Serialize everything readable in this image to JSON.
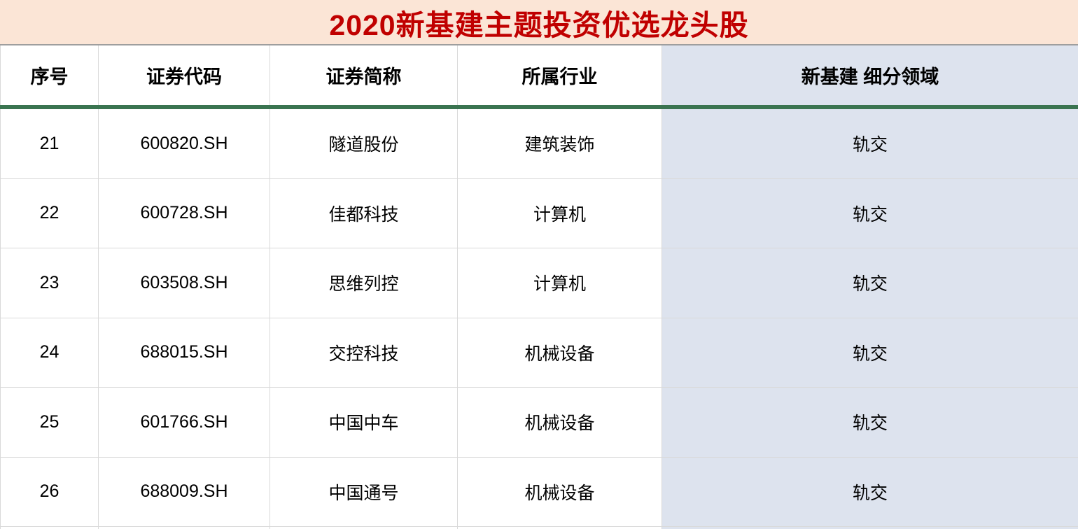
{
  "title": "2020新基建主题投资优选龙头股",
  "colors": {
    "title_background": "#fbe5d6",
    "title_text": "#c00000",
    "segment_column_background": "#dde3ee",
    "divider_green": "#3a7450",
    "grid_line": "#d9d9d9",
    "title_underline": "#9e9e9e"
  },
  "table": {
    "headers": [
      "序号",
      "证券代码",
      "证券简称",
      "所属行业",
      "新基建 细分领域"
    ],
    "rows": [
      {
        "no": "21",
        "code": "600820.SH",
        "name": "隧道股份",
        "industry": "建筑装饰",
        "segment": "轨交"
      },
      {
        "no": "22",
        "code": "600728.SH",
        "name": "佳都科技",
        "industry": "计算机",
        "segment": "轨交"
      },
      {
        "no": "23",
        "code": "603508.SH",
        "name": "思维列控",
        "industry": "计算机",
        "segment": "轨交"
      },
      {
        "no": "24",
        "code": "688015.SH",
        "name": "交控科技",
        "industry": "机械设备",
        "segment": "轨交"
      },
      {
        "no": "25",
        "code": "601766.SH",
        "name": "中国中车",
        "industry": "机械设备",
        "segment": "轨交"
      },
      {
        "no": "26",
        "code": "688009.SH",
        "name": "中国通号",
        "industry": "机械设备",
        "segment": "轨交"
      }
    ]
  }
}
